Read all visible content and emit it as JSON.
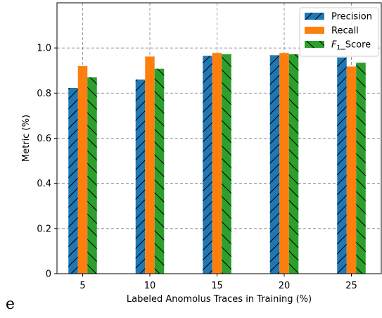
{
  "panel_label": "e",
  "chart_data": {
    "type": "bar",
    "xlabel": "Labeled Anomolus Traces in Training (%)",
    "ylabel": "Metric (%)",
    "categories": [
      "5",
      "10",
      "15",
      "20",
      "25"
    ],
    "ylim": [
      0,
      1.2
    ],
    "yticks": [
      "0",
      "0.2",
      "0.4",
      "0.6",
      "0.8",
      "1.0"
    ],
    "grid": true,
    "legend_position": "top-right",
    "series": [
      {
        "name": "Precision",
        "values": [
          0.823,
          0.86,
          0.965,
          0.968,
          0.958
        ],
        "color": "#1f77b4",
        "hatch": "slash"
      },
      {
        "name": "Recall",
        "values": [
          0.92,
          0.962,
          0.978,
          0.978,
          0.918
        ],
        "color": "#ff7f0e",
        "hatch": "none"
      },
      {
        "name": "F1_Score",
        "name_main": "F",
        "name_sub": "1",
        "name_rest": "_Score",
        "values": [
          0.87,
          0.908,
          0.972,
          0.972,
          0.935
        ],
        "color": "#2ca02c",
        "hatch": "backslash"
      }
    ]
  }
}
